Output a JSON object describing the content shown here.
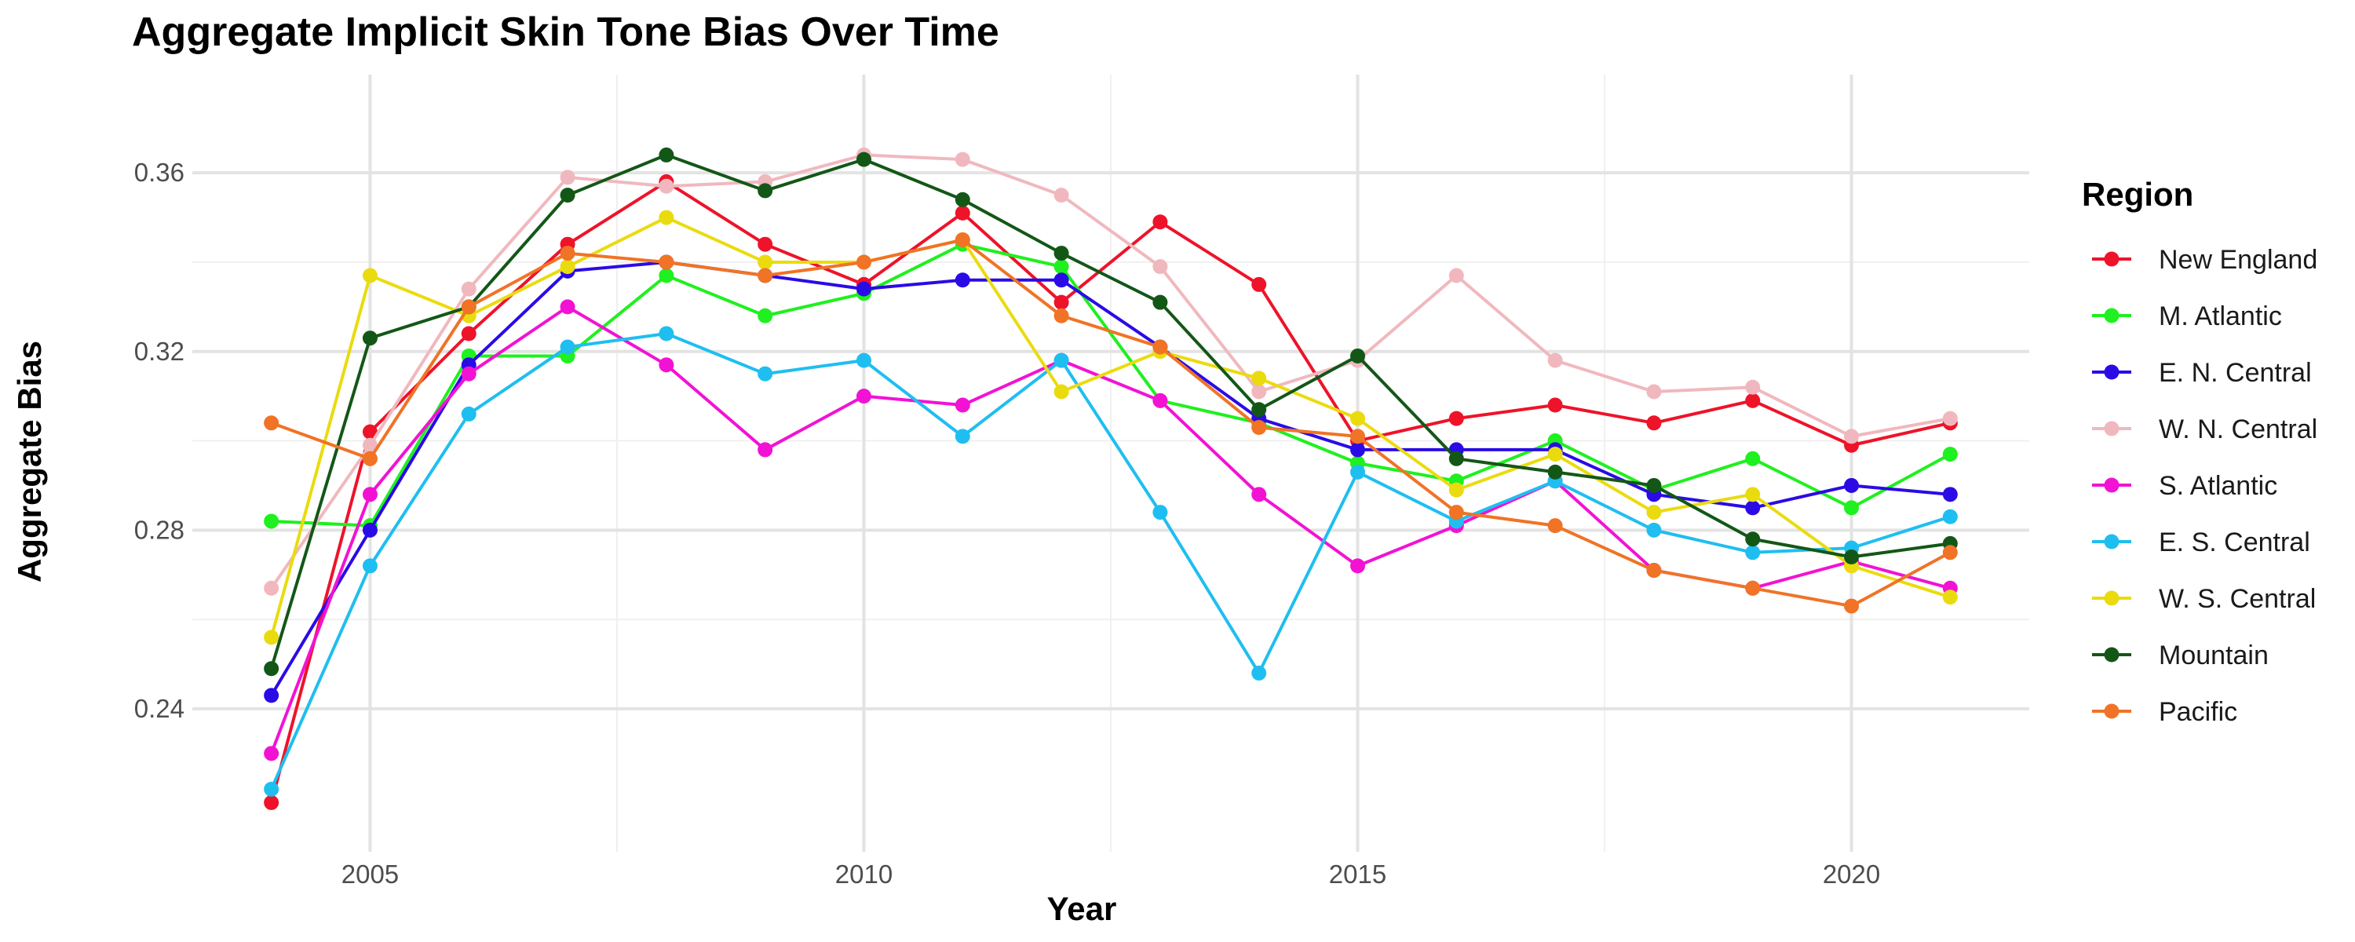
{
  "chart_data": {
    "type": "line",
    "title": "Aggregate Implicit Skin Tone Bias Over Time",
    "xlabel": "Year",
    "ylabel": "Aggregate Bias",
    "xlim": [
      2003.2,
      2021.8
    ],
    "ylim": [
      0.208,
      0.382
    ],
    "xticks": [
      2005,
      2010,
      2015,
      2020
    ],
    "yticks": [
      0.24,
      0.28,
      0.32,
      0.36
    ],
    "grid": true,
    "legend_title": "Region",
    "legend_position": "right",
    "x": [
      2004,
      2005,
      2006,
      2007,
      2008,
      2009,
      2010,
      2011,
      2012,
      2013,
      2014,
      2015,
      2016,
      2017,
      2018,
      2019,
      2020,
      2021
    ],
    "series": [
      {
        "name": "New England",
        "color": "#ee1329",
        "values": [
          0.219,
          0.302,
          0.324,
          0.344,
          0.358,
          0.344,
          0.335,
          0.351,
          0.331,
          0.349,
          0.335,
          0.3,
          0.305,
          0.308,
          0.304,
          0.309,
          0.299,
          0.304
        ]
      },
      {
        "name": "M. Atlantic",
        "color": "#1ff01f",
        "values": [
          0.282,
          0.281,
          0.319,
          0.319,
          0.337,
          0.328,
          0.333,
          0.344,
          0.339,
          0.309,
          0.304,
          0.295,
          0.291,
          0.3,
          0.289,
          0.296,
          0.285,
          0.297
        ]
      },
      {
        "name": "E. N. Central",
        "color": "#2a0be6",
        "values": [
          0.243,
          0.28,
          0.317,
          0.338,
          0.34,
          0.337,
          0.334,
          0.336,
          0.336,
          0.321,
          0.305,
          0.298,
          0.298,
          0.298,
          0.288,
          0.285,
          0.29,
          0.288
        ]
      },
      {
        "name": "W. N. Central",
        "color": "#f0b8be",
        "values": [
          0.267,
          0.299,
          0.334,
          0.359,
          0.357,
          0.358,
          0.364,
          0.363,
          0.355,
          0.339,
          0.311,
          0.318,
          0.337,
          0.318,
          0.311,
          0.312,
          0.301,
          0.305
        ]
      },
      {
        "name": "S. Atlantic",
        "color": "#f212d4",
        "values": [
          0.23,
          0.288,
          0.315,
          0.33,
          0.317,
          0.298,
          0.31,
          0.308,
          0.318,
          0.309,
          0.288,
          0.272,
          0.281,
          0.291,
          0.271,
          0.267,
          0.273,
          0.267
        ]
      },
      {
        "name": "E. S. Central",
        "color": "#1fbef0",
        "values": [
          0.222,
          0.272,
          0.306,
          0.321,
          0.324,
          0.315,
          0.318,
          0.301,
          0.318,
          0.284,
          0.248,
          0.293,
          0.282,
          0.291,
          0.28,
          0.275,
          0.276,
          0.283
        ]
      },
      {
        "name": "W. S. Central",
        "color": "#eadb0f",
        "values": [
          0.256,
          0.337,
          0.328,
          0.339,
          0.35,
          0.34,
          0.34,
          0.345,
          0.311,
          0.32,
          0.314,
          0.305,
          0.289,
          0.297,
          0.284,
          0.288,
          0.272,
          0.265
        ]
      },
      {
        "name": "Mountain",
        "color": "#135717",
        "values": [
          0.249,
          0.323,
          0.33,
          0.355,
          0.364,
          0.356,
          0.363,
          0.354,
          0.342,
          0.331,
          0.307,
          0.319,
          0.296,
          0.293,
          0.29,
          0.278,
          0.274,
          0.277
        ]
      },
      {
        "name": "Pacific",
        "color": "#f07326",
        "values": [
          0.304,
          0.296,
          0.33,
          0.342,
          0.34,
          0.337,
          0.34,
          0.345,
          0.328,
          0.321,
          0.303,
          0.301,
          0.284,
          0.281,
          0.271,
          0.267,
          0.263,
          0.275
        ]
      }
    ]
  }
}
